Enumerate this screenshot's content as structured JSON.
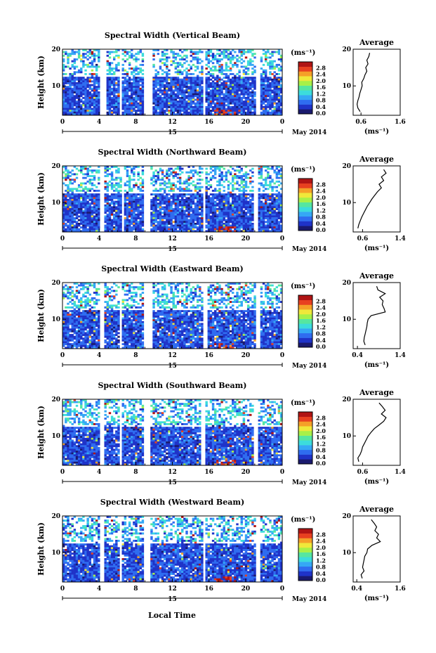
{
  "figure": {
    "date_label": "May 2014",
    "day_label": "15",
    "x_axis_label": "Local Time",
    "y_axis_label": "Height (km)",
    "colorbar_unit": "(ms⁻¹)",
    "colorbar_ticks": [
      "0.0",
      "0.4",
      "0.8",
      "1.2",
      "1.6",
      "2.0",
      "2.4",
      "2.8"
    ],
    "average_title": "Average",
    "average_unit": "(ms⁻¹)",
    "colors": {
      "scale": [
        "#1a1a6e",
        "#1f33c8",
        "#2f6cf0",
        "#35a8f5",
        "#3cdcdc",
        "#56e6a0",
        "#a8f048",
        "#f0e83a",
        "#f5a028",
        "#e84020",
        "#b01414"
      ]
    }
  },
  "chart_data": [
    {
      "type": "heatmap",
      "title": "Spectral Width (Vertical Beam)",
      "x_ticks": [
        "0",
        "4",
        "8",
        "12",
        "16",
        "20",
        "0"
      ],
      "xlim": [
        0,
        24
      ],
      "y_ticks": [
        "20",
        "10"
      ],
      "ylim": [
        2,
        20
      ],
      "z_range": [
        0,
        3.0
      ],
      "data_gaps_hours": [
        [
          4,
          4.7
        ],
        [
          6.2,
          6.5
        ],
        [
          9.0,
          9.8
        ],
        [
          15.3,
          15.7
        ],
        [
          21.2,
          21.5
        ]
      ],
      "average": {
        "type": "line",
        "x_ticks": [
          "0.6",
          "1.6"
        ],
        "xlim": [
          0.4,
          1.6
        ],
        "y_ticks": [
          "20",
          "10"
        ],
        "ylim": [
          2,
          20
        ],
        "height_km": [
          3,
          4,
          5,
          6,
          7,
          8,
          9,
          10,
          11,
          12,
          13,
          14,
          15,
          16,
          17,
          18,
          19
        ],
        "width": [
          0.58,
          0.52,
          0.5,
          0.52,
          0.55,
          0.57,
          0.6,
          0.63,
          0.62,
          0.67,
          0.7,
          0.75,
          0.72,
          0.78,
          0.75,
          0.8,
          0.82
        ]
      }
    },
    {
      "type": "heatmap",
      "title": "Spectral Width (Northward Beam)",
      "x_ticks": [
        "0",
        "4",
        "8",
        "12",
        "16",
        "20",
        "0"
      ],
      "xlim": [
        0,
        24
      ],
      "y_ticks": [
        "20",
        "10"
      ],
      "ylim": [
        2,
        20
      ],
      "z_range": [
        0,
        3.0
      ],
      "data_gaps_hours": [
        [
          4,
          4.5
        ],
        [
          6.4,
          6.7
        ],
        [
          9.0,
          9.7
        ],
        [
          15.3,
          15.7
        ],
        [
          21.0,
          21.4
        ]
      ],
      "average": {
        "type": "line",
        "x_ticks": [
          "0.6",
          "1.4"
        ],
        "xlim": [
          0.4,
          1.4
        ],
        "y_ticks": [
          "20",
          "10"
        ],
        "ylim": [
          2,
          20
        ],
        "height_km": [
          3,
          4,
          5,
          6,
          7,
          8,
          9,
          10,
          11,
          12,
          13,
          14,
          15,
          16,
          17,
          18,
          19
        ],
        "width": [
          0.5,
          0.52,
          0.55,
          0.58,
          0.62,
          0.66,
          0.7,
          0.75,
          0.8,
          0.86,
          0.92,
          1.0,
          0.95,
          1.05,
          1.0,
          1.1,
          1.05
        ]
      }
    },
    {
      "type": "heatmap",
      "title": "Spectral Width (Eastward Beam)",
      "x_ticks": [
        "0",
        "4",
        "8",
        "12",
        "16",
        "20",
        "0"
      ],
      "xlim": [
        0,
        24
      ],
      "y_ticks": [
        "20",
        "10"
      ],
      "ylim": [
        2,
        20
      ],
      "z_range": [
        0,
        3.0
      ],
      "data_gaps_hours": [
        [
          4,
          4.6
        ],
        [
          6.3,
          6.6
        ],
        [
          9.0,
          9.8
        ],
        [
          15.4,
          15.8
        ],
        [
          21.1,
          21.5
        ]
      ],
      "average": {
        "type": "line",
        "x_ticks": [
          "0.4",
          "1.4"
        ],
        "xlim": [
          0.3,
          1.4
        ],
        "y_ticks": [
          "20",
          "10"
        ],
        "ylim": [
          2,
          20
        ],
        "height_km": [
          3,
          4,
          5,
          6,
          7,
          8,
          9,
          10,
          11,
          12,
          13,
          14,
          15,
          16,
          17,
          18,
          19
        ],
        "width": [
          0.58,
          0.55,
          0.56,
          0.58,
          0.6,
          0.62,
          0.63,
          0.65,
          0.72,
          1.05,
          1.02,
          0.98,
          1.0,
          0.92,
          1.05,
          0.88,
          0.85
        ]
      }
    },
    {
      "type": "heatmap",
      "title": "Spectral Width (Southward Beam)",
      "x_ticks": [
        "0",
        "4",
        "8",
        "12",
        "16",
        "20",
        "0"
      ],
      "xlim": [
        0,
        24
      ],
      "y_ticks": [
        "20",
        "10"
      ],
      "ylim": [
        2,
        20
      ],
      "z_range": [
        0,
        3.0
      ],
      "data_gaps_hours": [
        [
          4,
          4.5
        ],
        [
          6.2,
          6.5
        ],
        [
          9.0,
          9.7
        ],
        [
          15.2,
          15.6
        ],
        [
          21.0,
          21.4
        ]
      ],
      "average": {
        "type": "line",
        "x_ticks": [
          "0.6",
          "1.4"
        ],
        "xlim": [
          0.4,
          1.4
        ],
        "y_ticks": [
          "20",
          "10"
        ],
        "ylim": [
          2,
          20
        ],
        "height_km": [
          3,
          4,
          5,
          6,
          7,
          8,
          9,
          10,
          11,
          12,
          13,
          14,
          15,
          16,
          17,
          18,
          19
        ],
        "width": [
          0.52,
          0.5,
          0.55,
          0.58,
          0.6,
          0.64,
          0.68,
          0.72,
          0.78,
          0.85,
          0.95,
          1.05,
          1.1,
          1.0,
          1.08,
          1.02,
          0.95
        ]
      }
    },
    {
      "type": "heatmap",
      "title": "Spectral Width (Westward Beam)",
      "x_ticks": [
        "0",
        "4",
        "8",
        "12",
        "16",
        "20",
        "0"
      ],
      "xlim": [
        0,
        24
      ],
      "y_ticks": [
        "20",
        "10"
      ],
      "ylim": [
        2,
        20
      ],
      "z_range": [
        0,
        3.0
      ],
      "data_gaps_hours": [
        [
          4,
          4.6
        ],
        [
          6.3,
          6.6
        ],
        [
          9.0,
          9.7
        ],
        [
          15.3,
          15.7
        ],
        [
          21.1,
          21.5
        ]
      ],
      "average": {
        "type": "line",
        "x_ticks": [
          "0.4",
          "1.6"
        ],
        "xlim": [
          0.3,
          1.6
        ],
        "y_ticks": [
          "20",
          "10"
        ],
        "ylim": [
          2,
          20
        ],
        "height_km": [
          3,
          4,
          5,
          6,
          7,
          8,
          9,
          10,
          11,
          12,
          13,
          14,
          15,
          16,
          17,
          18,
          19
        ],
        "width": [
          0.55,
          0.52,
          0.6,
          0.56,
          0.58,
          0.6,
          0.62,
          0.68,
          0.7,
          0.82,
          1.05,
          0.95,
          1.0,
          0.9,
          0.95,
          0.88,
          0.8
        ]
      }
    }
  ]
}
